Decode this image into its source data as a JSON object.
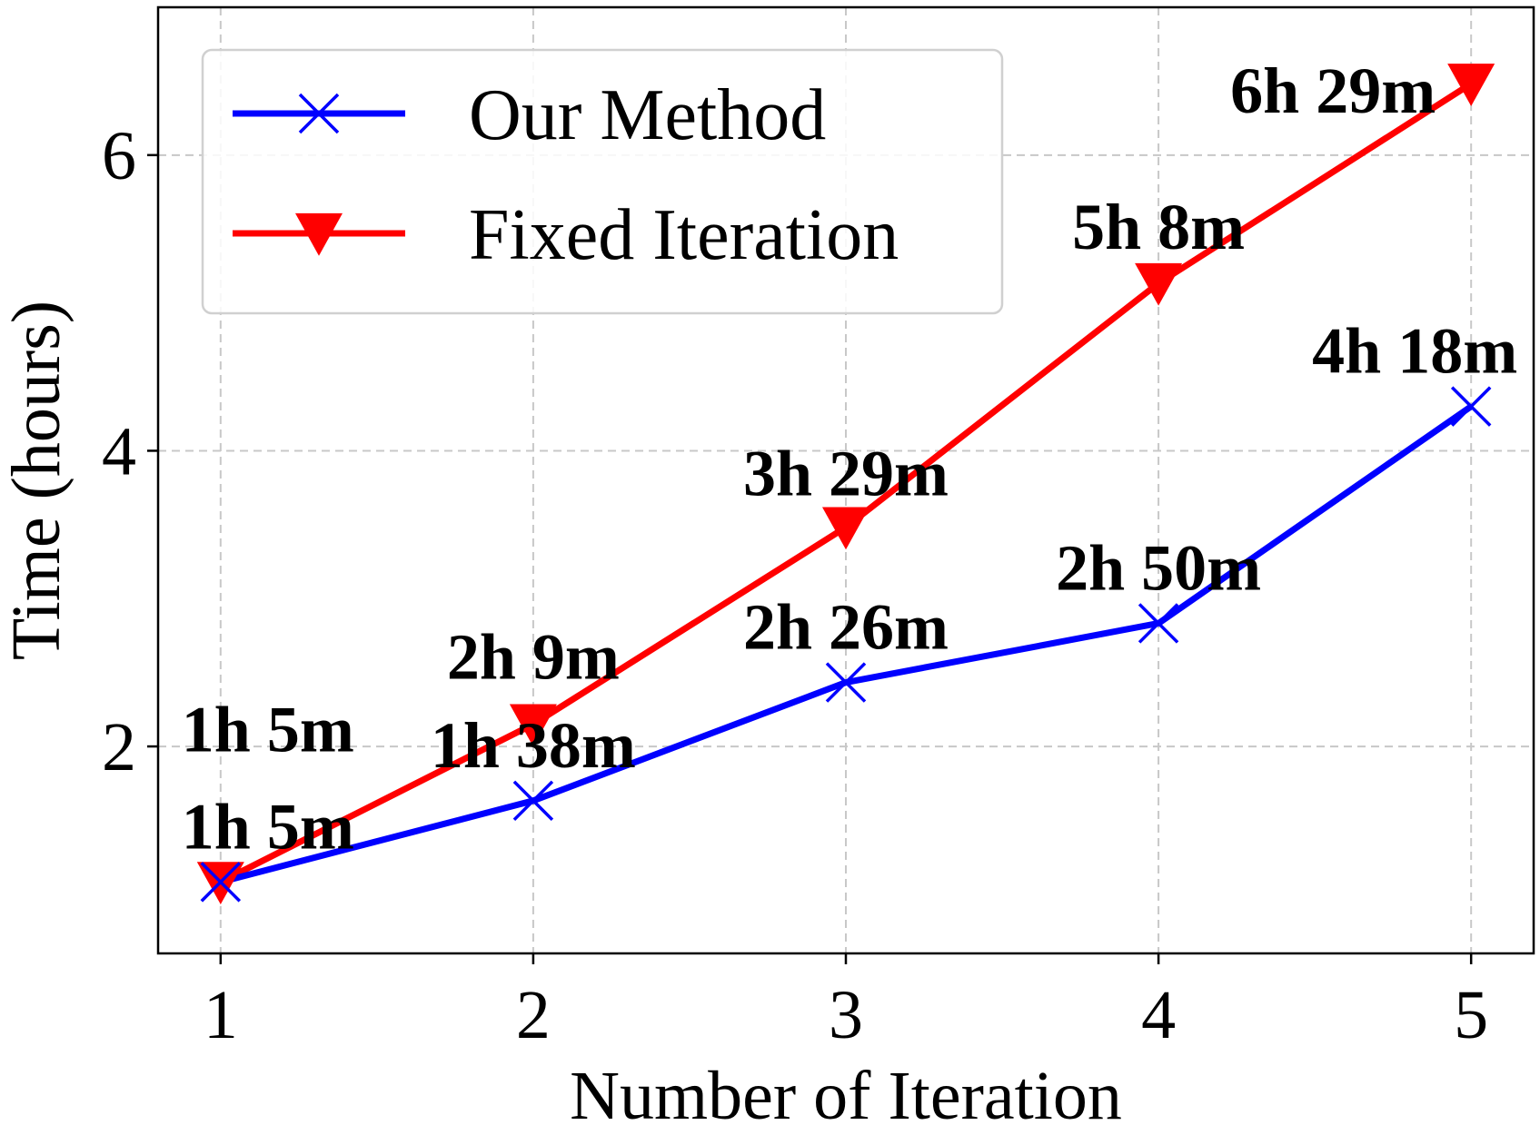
{
  "chart_data": {
    "type": "line",
    "title": "",
    "xlabel": "Number of Iteration",
    "ylabel": "Time (hours)",
    "x": [
      1,
      2,
      3,
      4,
      5
    ],
    "x_tick_labels": [
      "1",
      "2",
      "3",
      "4",
      "5"
    ],
    "y_ticks": [
      2,
      4,
      6
    ],
    "y_tick_labels": [
      "2",
      "4",
      "6"
    ],
    "xlim": [
      0.8,
      5.2
    ],
    "ylim": [
      0.6,
      7.0
    ],
    "grid": true,
    "legend_position": "top-left",
    "series": [
      {
        "name": "Our Method",
        "color": "#0000ff",
        "marker": "x",
        "values": [
          1.083,
          1.633,
          2.433,
          2.833,
          4.3
        ],
        "data_labels": [
          "1h 5m",
          "1h 38m",
          "2h 26m",
          "2h 50m",
          "4h 18m"
        ]
      },
      {
        "name": "Fixed Iteration",
        "color": "#ff0000",
        "marker": "triangle-down",
        "values": [
          1.083,
          2.15,
          3.483,
          5.133,
          6.483
        ],
        "data_labels": [
          "1h 5m",
          "2h 9m",
          "3h 29m",
          "5h 8m",
          "6h 29m"
        ]
      }
    ]
  }
}
